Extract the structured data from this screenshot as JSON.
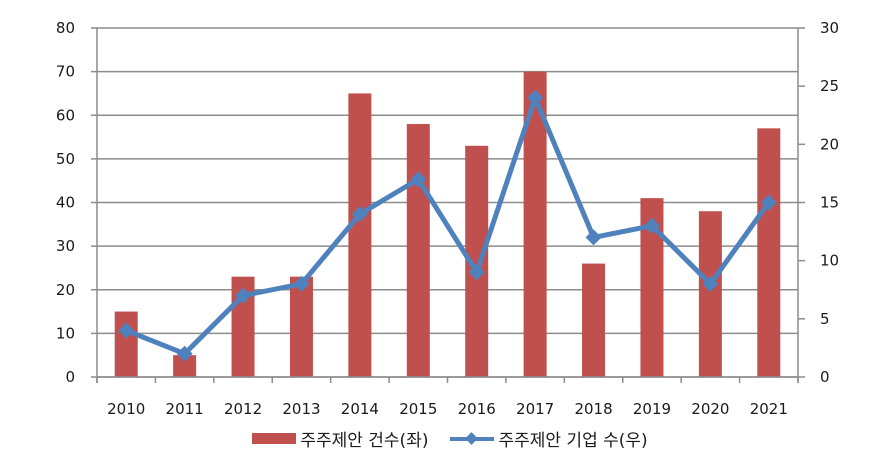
{
  "chart_data": {
    "type": "bar+line",
    "title": "",
    "categories": [
      "2010",
      "2011",
      "2012",
      "2013",
      "2014",
      "2015",
      "2016",
      "2017",
      "2018",
      "2019",
      "2020",
      "2021"
    ],
    "series": [
      {
        "name": "주주제안 건수(좌)",
        "type": "bar",
        "axis": "left",
        "color": "#C0504D",
        "values": [
          15,
          5,
          23,
          23,
          65,
          58,
          53,
          70,
          26,
          41,
          38,
          57
        ]
      },
      {
        "name": "주주제안 기업 수(우)",
        "type": "line",
        "axis": "right",
        "color": "#4F81BD",
        "marker": "diamond",
        "values": [
          4,
          2,
          7,
          8,
          14,
          17,
          9,
          24,
          12,
          13,
          8,
          15
        ]
      }
    ],
    "left_axis": {
      "min": 0,
      "max": 80,
      "step": 10,
      "ticks": [
        "0",
        "10",
        "20",
        "30",
        "40",
        "50",
        "60",
        "70",
        "80"
      ]
    },
    "right_axis": {
      "min": 0,
      "max": 30,
      "step": 5,
      "ticks": [
        "0",
        "5",
        "10",
        "15",
        "20",
        "25",
        "30"
      ]
    },
    "xlabel": "",
    "ylabel": "",
    "grid": true,
    "legend_position": "bottom"
  },
  "legend": {
    "bar_label": "주주제안 건수(좌)",
    "line_label": "주주제안 기업 수(우)"
  }
}
